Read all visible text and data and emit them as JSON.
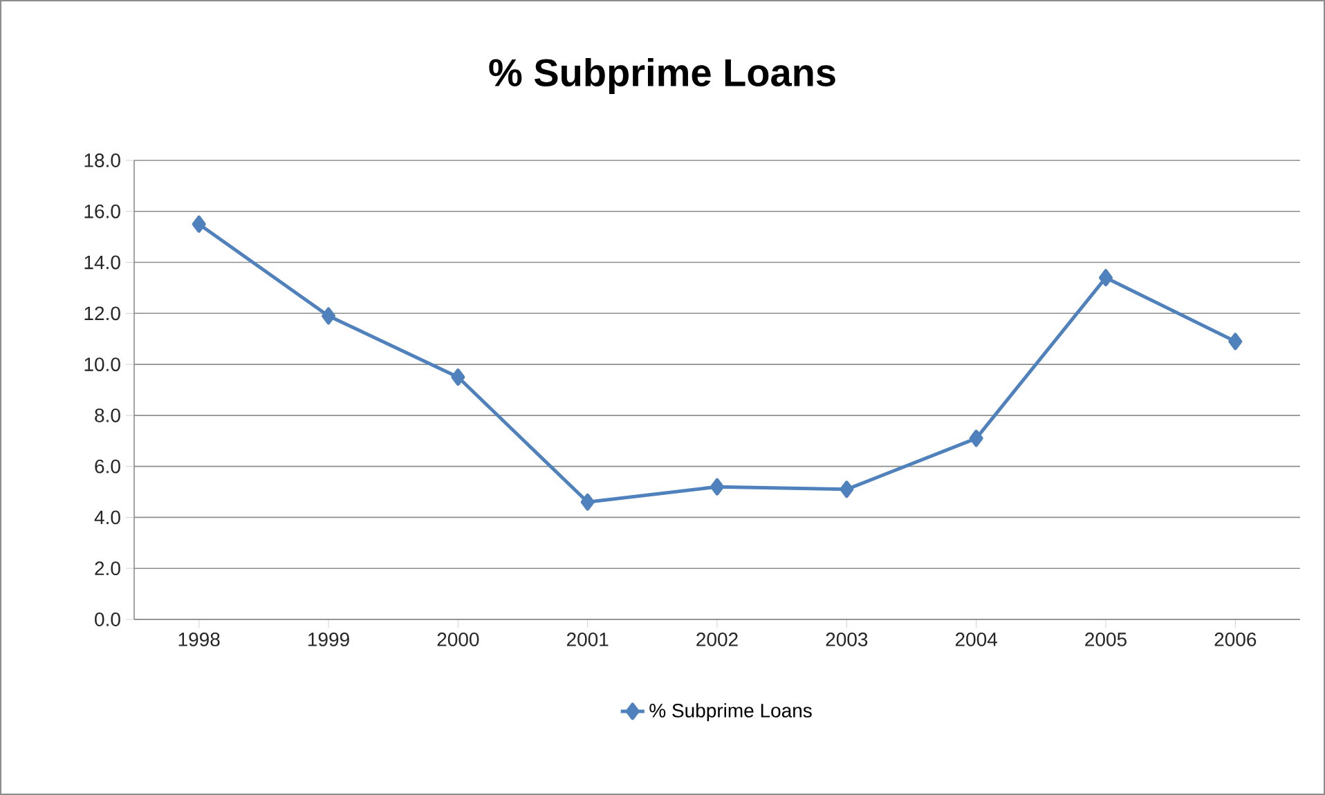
{
  "chart_data": {
    "type": "line",
    "title": "% Subprime Loans",
    "categories": [
      "1998",
      "1999",
      "2000",
      "2001",
      "2002",
      "2003",
      "2004",
      "2005",
      "2006"
    ],
    "series": [
      {
        "name": "% Subprime Loans",
        "color": "#4f81bd",
        "values": [
          15.5,
          11.9,
          9.5,
          4.6,
          5.2,
          5.1,
          7.1,
          13.4,
          10.9
        ]
      }
    ],
    "ylim": [
      0,
      18
    ],
    "yticks": [
      {
        "value": 0,
        "label": "0.0"
      },
      {
        "value": 2,
        "label": "2.0"
      },
      {
        "value": 4,
        "label": "4.0"
      },
      {
        "value": 6,
        "label": "6.0"
      },
      {
        "value": 8,
        "label": "8.0"
      },
      {
        "value": 10,
        "label": "10.0"
      },
      {
        "value": 12,
        "label": "12.0"
      },
      {
        "value": 14,
        "label": "14.0"
      },
      {
        "value": 16,
        "label": "16.0"
      },
      {
        "value": 18,
        "label": "18.0"
      }
    ],
    "grid": "y",
    "legend": "bottom",
    "marker": "diamond",
    "line_style": "solid"
  }
}
